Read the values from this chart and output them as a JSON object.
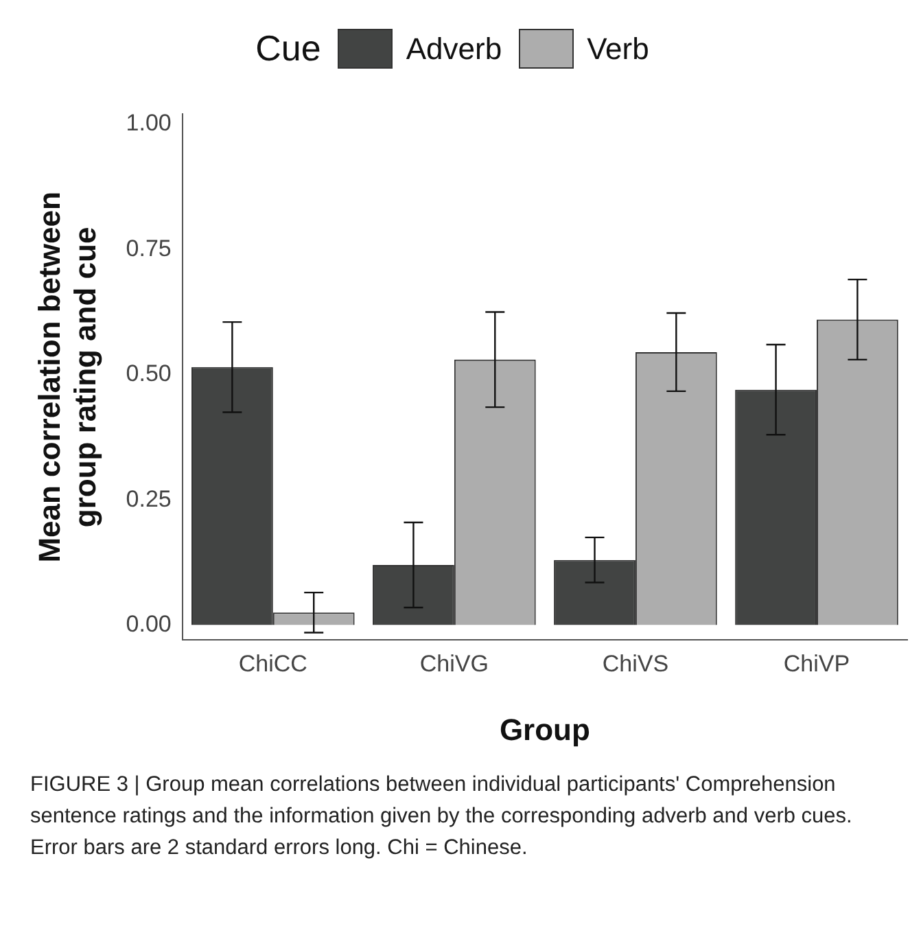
{
  "chart_data": {
    "type": "bar",
    "xlabel": "Group",
    "ylabel": "Mean correlation between\ngroup rating and cue",
    "legend_title": "Cue",
    "legend": "top",
    "categories": [
      "ChiCC",
      "ChiVG",
      "ChiVS",
      "ChiVP"
    ],
    "series": [
      {
        "name": "Adverb",
        "color": "#424443",
        "values": [
          0.515,
          0.12,
          0.13,
          0.47
        ],
        "errors": [
          0.09,
          0.085,
          0.045,
          0.09
        ]
      },
      {
        "name": "Verb",
        "color": "#adadad",
        "values": [
          0.025,
          0.53,
          0.545,
          0.61
        ],
        "errors": [
          0.04,
          0.095,
          0.078,
          0.08
        ]
      }
    ],
    "ylim": [
      -0.03,
      1.02
    ],
    "yticks": [
      {
        "value": 0,
        "label": "0.00"
      },
      {
        "value": 0.25,
        "label": "0.25"
      },
      {
        "value": 0.5,
        "label": "0.50"
      },
      {
        "value": 0.75,
        "label": "0.75"
      },
      {
        "value": 1,
        "label": "1.00"
      }
    ],
    "grid": false,
    "annotations": [
      "FIGURE 3 | Group mean correlations between individual participants' Comprehension sentence ratings and the information given by the corresponding adverb and verb cues. Error bars are 2 standard errors long. Chi = Chinese."
    ]
  }
}
